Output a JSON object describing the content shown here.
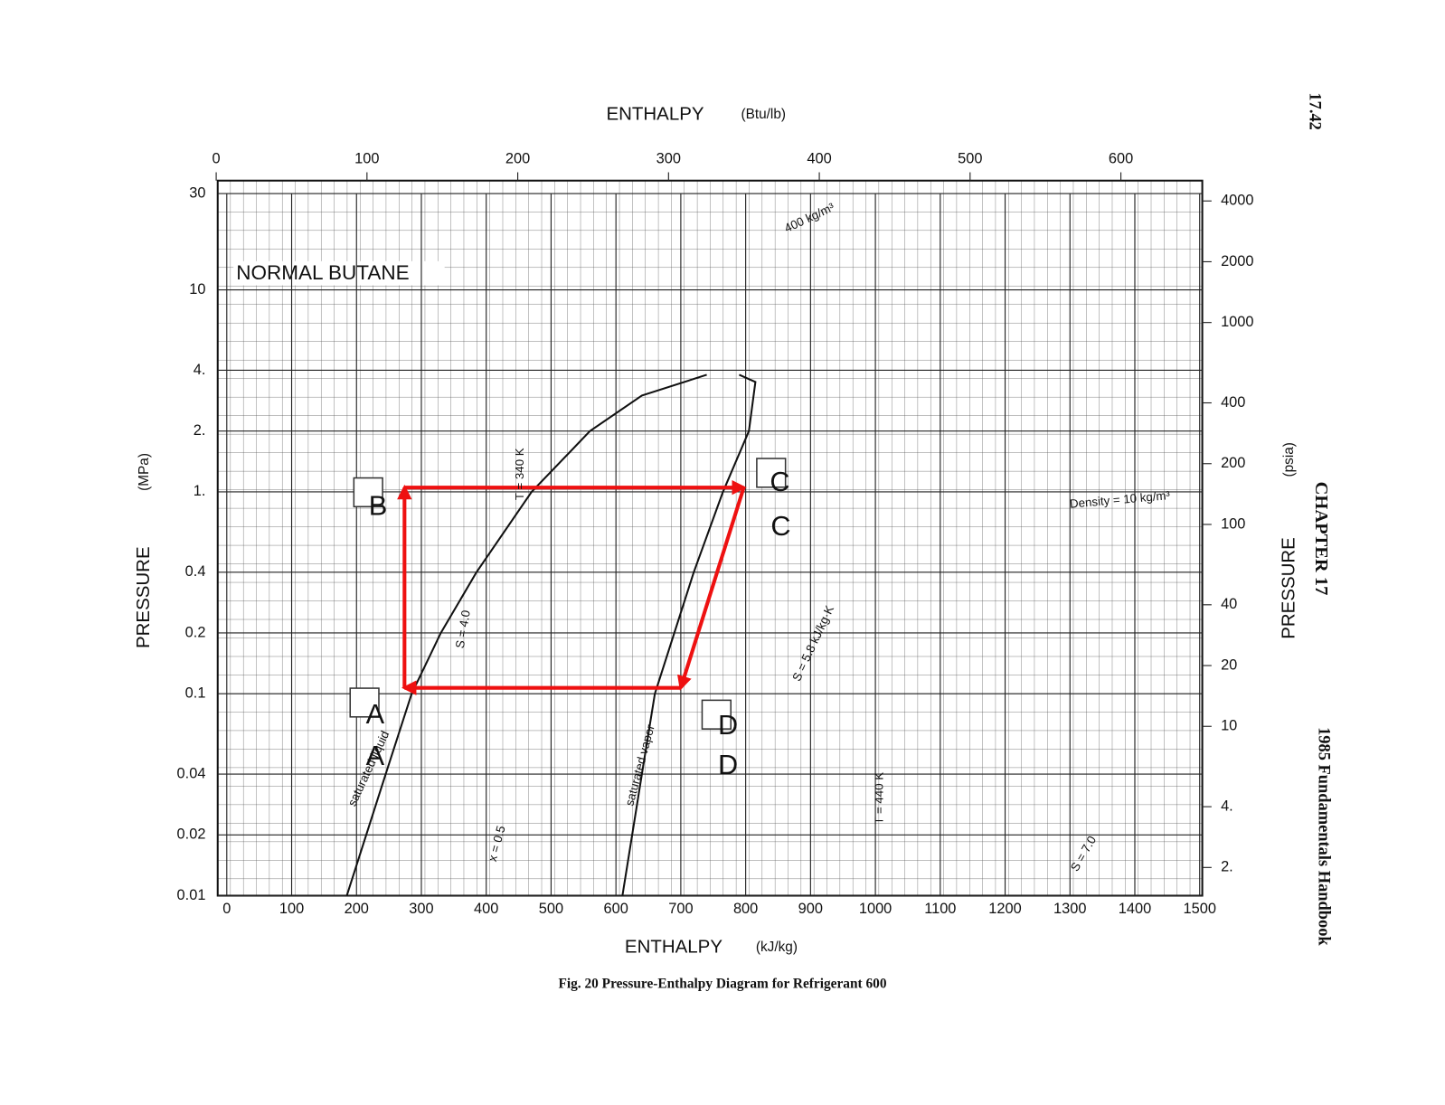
{
  "chart_data": {
    "type": "line",
    "title": "NORMAL BUTANE",
    "caption": "Fig. 20   Pressure-Enthalpy Diagram for Refrigerant 600",
    "page_number": "17.42",
    "chapter": "CHAPTER 17",
    "book": "1985 Fundamentals Handbook",
    "x_label": "ENTHALPY",
    "x_unit": "(kJ/kg)",
    "x2_label": "ENTHALPY",
    "x2_unit": "(Btu/lb)",
    "y_label": "PRESSURE",
    "y_unit": "(MPa)",
    "y2_label": "PRESSURE",
    "y2_unit": "(psia)",
    "log_y": true,
    "grid": true,
    "xlim": [
      -14,
      1504
    ],
    "xticks": [
      0,
      100,
      200,
      300,
      400,
      500,
      600,
      700,
      800,
      900,
      1000,
      1100,
      1200,
      1300,
      1400,
      1500
    ],
    "x2lim": [
      1,
      654
    ],
    "x2ticks": [
      0,
      100,
      200,
      300,
      400,
      500,
      600
    ],
    "ylim": [
      0.01,
      30
    ],
    "yticks": [
      0.01,
      0.02,
      0.04,
      0.1,
      0.2,
      0.4,
      {
        "value": 1,
        "label": "1."
      },
      {
        "value": 2,
        "label": "2."
      },
      {
        "value": 4,
        "label": "4."
      },
      10,
      30
    ],
    "y2lim": [
      1.45,
      4351
    ],
    "y2ticks": [
      {
        "value": 2,
        "label": "2."
      },
      {
        "value": 4,
        "label": "4."
      },
      10,
      20,
      40,
      100,
      200,
      400,
      1000,
      2000,
      4000
    ],
    "series": [
      {
        "name": "saturated liquid",
        "color": "#111111",
        "x": [
          185,
          215,
          245,
          285,
          330,
          385,
          470,
          560,
          640,
          740
        ],
        "values": [
          0.01,
          0.02,
          0.04,
          0.1,
          0.2,
          0.4,
          1,
          2,
          3,
          3.8
        ]
      },
      {
        "name": "saturated vapor",
        "color": "#111111",
        "x": [
          610,
          625,
          640,
          660,
          690,
          720,
          765,
          805,
          815,
          790
        ],
        "values": [
          0.01,
          0.02,
          0.04,
          0.1,
          0.2,
          0.4,
          1,
          2,
          3.5,
          3.8
        ]
      },
      {
        "color": "#ee1111",
        "x": [
          274,
          274,
          797,
          700,
          274
        ],
        "values": [
          0.107,
          1.05,
          1.05,
          0.107,
          0.107
        ]
      }
    ],
    "point_labels": [
      "A",
      "B",
      "C",
      "D"
    ],
    "annotations": [
      "Density = 10 kg/m³",
      "S = 5.8 kJ/kg·K",
      "T = 440 K",
      "T = 340 K",
      "x = 0.5",
      "S = 7.0",
      "400 kg/m³",
      "S = 4.0"
    ]
  }
}
